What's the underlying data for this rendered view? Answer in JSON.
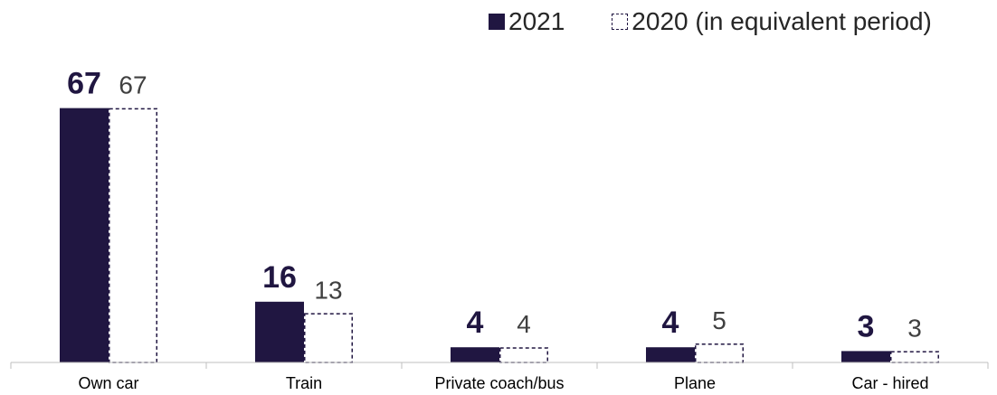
{
  "chart_data": {
    "type": "bar",
    "categories": [
      "Own car",
      "Train",
      "Private coach/bus",
      "Plane",
      "Car - hired"
    ],
    "series": [
      {
        "name": "2021",
        "values": [
          67,
          16,
          4,
          4,
          3
        ],
        "color": "#201641",
        "style": "solid"
      },
      {
        "name": "2020 (in equivalent period)",
        "values": [
          67,
          13,
          4,
          5,
          3
        ],
        "color": "#201641",
        "style": "dashed-outline"
      }
    ],
    "title": "",
    "xlabel": "",
    "ylabel": "",
    "ylim": [
      0,
      75
    ],
    "grid": false,
    "legend_position": "top-right",
    "label_colors": {
      "primary": "#201641",
      "secondary": "#404040"
    }
  }
}
